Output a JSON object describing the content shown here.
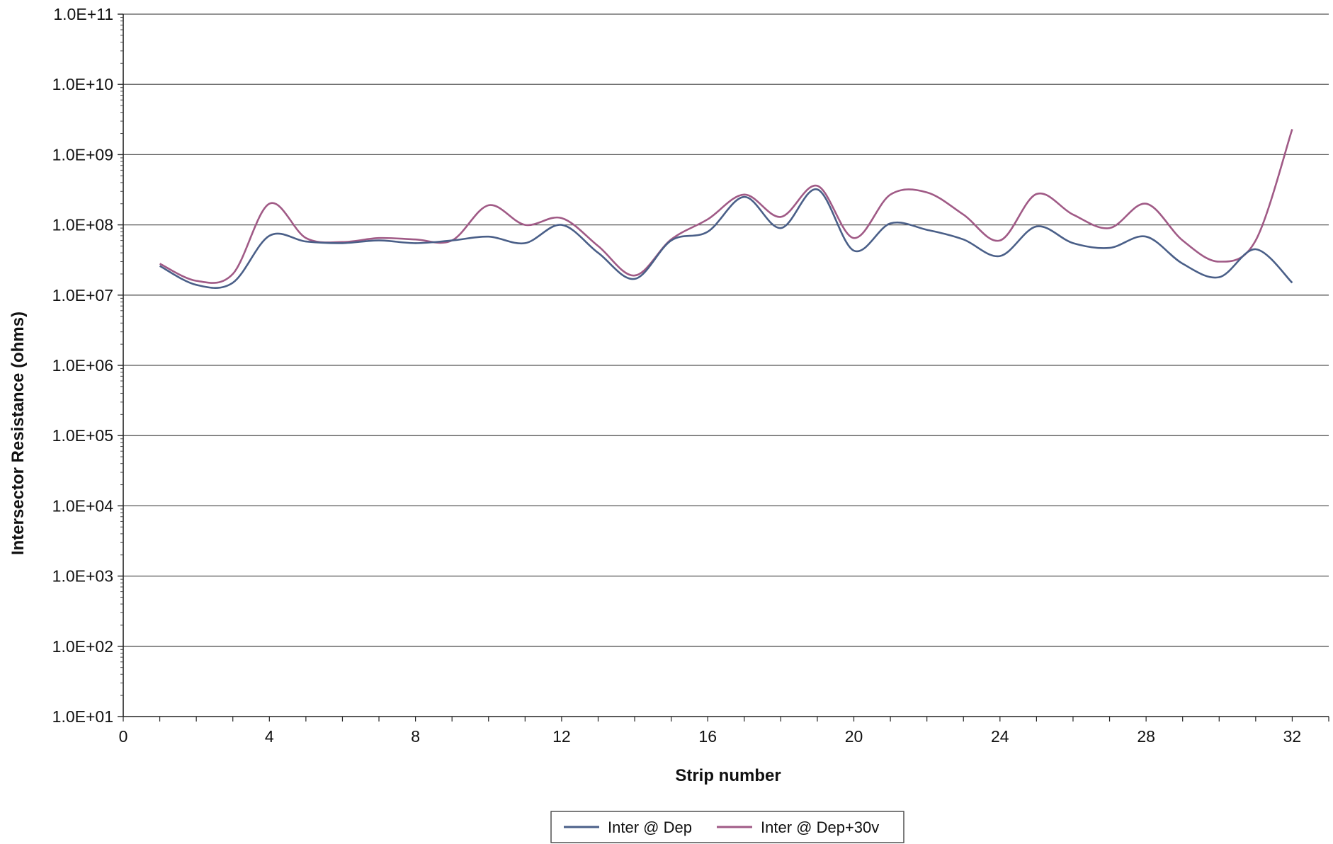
{
  "chart_data": {
    "type": "line",
    "title": "",
    "xlabel": "Strip number",
    "ylabel": "Intersector Resistance (ohms)",
    "yscale": "log",
    "xlim": [
      0,
      33
    ],
    "ylim": [
      10,
      100000000000
    ],
    "x_ticks": [
      0,
      4,
      8,
      12,
      16,
      20,
      24,
      28,
      32
    ],
    "x_tick_labels": [
      "0",
      "4",
      "8",
      "12",
      "16",
      "20",
      "24",
      "28",
      "32"
    ],
    "y_ticks": [
      10,
      100,
      1000,
      10000,
      100000,
      1000000,
      10000000,
      100000000,
      1000000000,
      10000000000,
      100000000000
    ],
    "y_tick_labels": [
      "1.0E+01",
      "1.0E+02",
      "1.0E+03",
      "1.0E+04",
      "1.0E+05",
      "1.0E+06",
      "1.0E+07",
      "1.0E+08",
      "1.0E+09",
      "1.0E+10",
      "1.0E+11"
    ],
    "grid": "horizontal",
    "legend_position": "bottom",
    "x": [
      1,
      2,
      3,
      4,
      5,
      6,
      7,
      8,
      9,
      10,
      11,
      12,
      13,
      14,
      15,
      16,
      17,
      18,
      19,
      20,
      21,
      22,
      23,
      24,
      25,
      26,
      27,
      28,
      29,
      30,
      31,
      32
    ],
    "series": [
      {
        "name": "Inter @ Dep",
        "color": "#4a5f88",
        "values": [
          26000000,
          14000000,
          15000000,
          70000000,
          58000000,
          55000000,
          60000000,
          55000000,
          60000000,
          68000000,
          55000000,
          100000000,
          40000000,
          17000000,
          60000000,
          80000000,
          250000000,
          90000000,
          320000000,
          43000000,
          105000000,
          85000000,
          62000000,
          36000000,
          95000000,
          55000000,
          47000000,
          68000000,
          28000000,
          18000000,
          45000000,
          15000000
        ]
      },
      {
        "name": "Inter @ Dep+30v",
        "color": "#a05a86",
        "values": [
          28000000,
          16000000,
          20000000,
          200000000,
          65000000,
          57000000,
          65000000,
          62000000,
          60000000,
          190000000,
          100000000,
          125000000,
          50000000,
          19000000,
          62000000,
          120000000,
          270000000,
          130000000,
          360000000,
          65000000,
          270000000,
          290000000,
          140000000,
          60000000,
          275000000,
          140000000,
          90000000,
          200000000,
          60000000,
          30000000,
          60000000,
          2300000000
        ]
      }
    ]
  }
}
